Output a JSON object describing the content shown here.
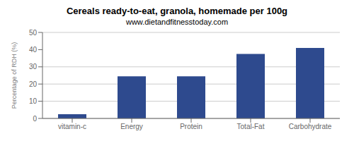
{
  "chart_data": {
    "type": "bar",
    "title": "Cereals ready-to-eat, granola, homemade per 100g",
    "subtitle": "www.dietandfitnesstoday.com",
    "categories": [
      "vitamin-c",
      "Energy",
      "Protein",
      "Total-Fat",
      "Carbohydrate"
    ],
    "values": [
      2.5,
      24.5,
      24.5,
      37.5,
      41.0
    ],
    "color": "#2e4a8e",
    "ylabel": "Percentage of RDH (%)",
    "ylim": [
      0,
      50
    ],
    "yticks": [
      0,
      10,
      20,
      30,
      40,
      50
    ],
    "grid": true
  }
}
